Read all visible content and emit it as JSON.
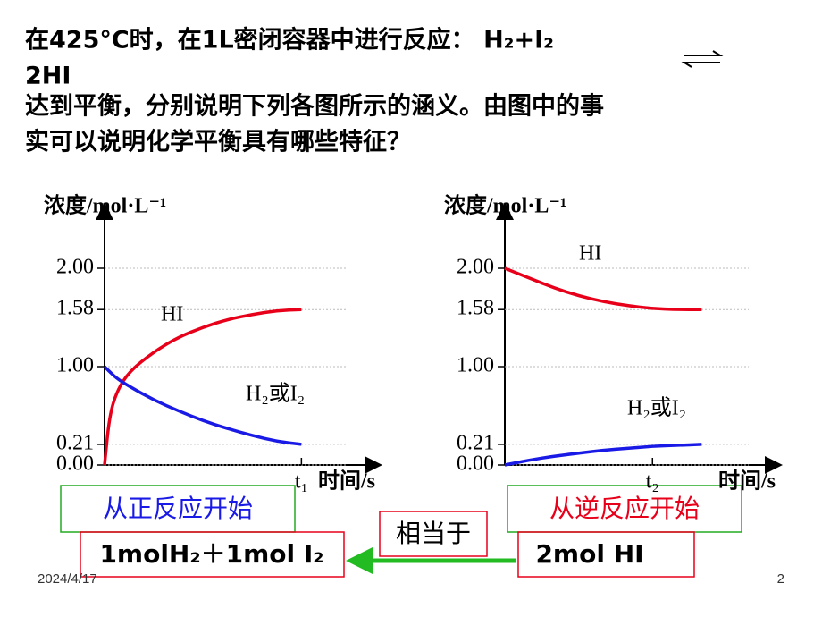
{
  "title_lines": [
    "在425°C时，在1L密闭容器中进行反应： H₂+I₂",
    "2HI",
    "达到平衡，分别说明下列各图所示的涵义。由图中的事",
    "实可以说明化学平衡具有哪些特征？"
  ],
  "chart_data": [
    {
      "type": "line",
      "y_label": "浓度/mol·L⁻¹",
      "x_label": "时间/s",
      "ylim": [
        0,
        2.6
      ],
      "xlim": [
        0,
        11
      ],
      "yticks": [
        {
          "value": 0,
          "label": "0.00"
        },
        0.21,
        {
          "value": 1,
          "label": "1.00"
        },
        1.58,
        {
          "value": 2,
          "label": "2.00"
        }
      ],
      "xticks": [
        {
          "value": 8,
          "label": "t₁"
        }
      ],
      "grid": true,
      "x": [
        0,
        0.2,
        0.5,
        1,
        2,
        3,
        4,
        5,
        6,
        7,
        8
      ],
      "series": [
        {
          "name": "HI",
          "color": "#e8001a",
          "values": [
            0,
            0.5,
            0.75,
            0.95,
            1.15,
            1.3,
            1.4,
            1.48,
            1.53,
            1.57,
            1.58
          ]
        },
        {
          "name": "H₂或I₂",
          "color": "#1a1ae6",
          "values": [
            1,
            0.95,
            0.88,
            0.8,
            0.66,
            0.55,
            0.45,
            0.37,
            0.3,
            0.24,
            0.21
          ]
        }
      ]
    },
    {
      "type": "line",
      "y_label": "浓度/mol·L⁻¹",
      "x_label": "时间/s",
      "ylim": [
        0,
        2.6
      ],
      "xlim": [
        0,
        11
      ],
      "yticks": [
        {
          "value": 0,
          "label": "0.00"
        },
        0.21,
        {
          "value": 1,
          "label": "1.00"
        },
        1.58,
        {
          "value": 2,
          "label": "2.00"
        }
      ],
      "xticks": [
        {
          "value": 6,
          "label": "t₂"
        }
      ],
      "grid": true,
      "x": [
        0,
        1,
        2,
        3,
        4,
        5,
        6,
        7,
        8
      ],
      "series": [
        {
          "name": "HI",
          "color": "#e8001a",
          "values": [
            2.0,
            1.9,
            1.8,
            1.72,
            1.66,
            1.62,
            1.59,
            1.58,
            1.58
          ]
        },
        {
          "name": "H₂或I₂",
          "color": "#1a1ae6",
          "values": [
            0,
            0.05,
            0.09,
            0.12,
            0.15,
            0.17,
            0.19,
            0.2,
            0.21
          ]
        }
      ]
    }
  ],
  "boxes": {
    "forward": "从正反应开始",
    "reverse": "从逆反应开始",
    "equivalent": "相当于",
    "left": "1molH₂＋1mol  I₂",
    "right": "2mol  HI"
  },
  "footer": {
    "date": "2024/4/17",
    "page": "2"
  }
}
